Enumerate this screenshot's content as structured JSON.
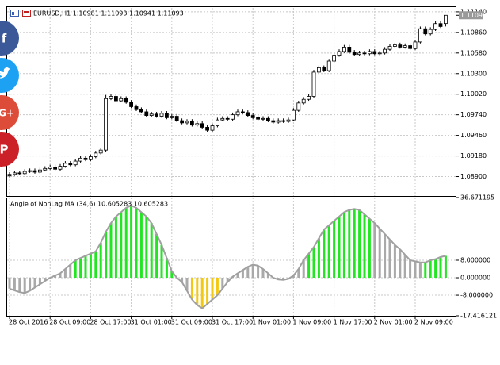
{
  "share_buttons": [
    "f",
    "G+",
    "P"
  ],
  "chart_data": [
    {
      "type": "candlestick",
      "title": "EURUSD,H1  1.10981 1.11093 1.10941 1.11093",
      "categories": [
        "28 Oct 2016",
        null,
        null,
        null,
        null,
        null,
        null,
        null,
        "28 Oct 09:00",
        null,
        null,
        null,
        null,
        null,
        null,
        null,
        "28 Oct 17:00",
        null,
        null,
        null,
        null,
        null,
        null,
        null,
        "31 Oct 01:00",
        null,
        null,
        null,
        null,
        null,
        null,
        null,
        "31 Oct 09:00",
        null,
        null,
        null,
        null,
        null,
        null,
        null,
        "31 Oct 17:00",
        null,
        null,
        null,
        null,
        null,
        null,
        null,
        "1 Nov 01:00",
        null,
        null,
        null,
        null,
        null,
        null,
        null,
        "1 Nov 09:00",
        null,
        null,
        null,
        null,
        null,
        null,
        null,
        "1 Nov 17:00",
        null,
        null,
        null,
        null,
        null,
        null,
        null,
        "2 Nov 01:00",
        null,
        null,
        null,
        null,
        null,
        null,
        null,
        "2 Nov 09:00",
        null,
        null,
        null,
        null,
        null,
        null
      ],
      "open": [
        1.0891,
        1.0893,
        1.0895,
        1.0894,
        1.0897,
        1.0898,
        1.0896,
        1.0899,
        1.0901,
        1.0903,
        1.09,
        1.0904,
        1.0908,
        1.0906,
        1.0911,
        1.0915,
        1.0913,
        1.0917,
        1.0922,
        1.0926,
        1.0996,
        1.0999,
        1.0993,
        1.0996,
        1.0991,
        1.0985,
        1.0981,
        1.0978,
        1.0973,
        1.0975,
        1.0972,
        1.0976,
        1.097,
        1.0972,
        1.0966,
        1.0963,
        1.0965,
        1.096,
        1.0962,
        1.0957,
        1.0953,
        1.0959,
        1.0967,
        1.0969,
        1.0968,
        1.0974,
        1.0978,
        1.0977,
        1.0973,
        1.097,
        1.0968,
        1.0969,
        1.0966,
        1.0964,
        1.0966,
        1.0965,
        1.0967,
        1.098,
        1.099,
        1.0995,
        1.0999,
        1.1032,
        1.1038,
        1.1034,
        1.1047,
        1.1055,
        1.106,
        1.1066,
        1.1059,
        1.1056,
        1.1058,
        1.1057,
        1.106,
        1.1057,
        1.1058,
        1.1063,
        1.1067,
        1.1069,
        1.1066,
        1.1068,
        1.1064,
        1.1073,
        1.1091,
        1.1084,
        1.109,
        1.1098,
        1.10981
      ],
      "high": [
        1.0896,
        1.0898,
        1.0898,
        1.09,
        1.0901,
        1.0901,
        1.0902,
        1.0904,
        1.0906,
        1.0906,
        1.0907,
        1.0911,
        1.0911,
        1.0914,
        1.0918,
        1.0918,
        1.092,
        1.0925,
        1.0929,
        1.1001,
        1.1002,
        1.1002,
        1.0999,
        1.0999,
        1.0994,
        1.0988,
        1.0984,
        1.0981,
        1.0978,
        1.0978,
        1.0979,
        1.0979,
        1.0975,
        1.0975,
        1.0969,
        1.0968,
        1.0968,
        1.0965,
        1.0965,
        1.096,
        1.0962,
        1.097,
        1.0972,
        1.0972,
        1.0977,
        1.0981,
        1.0981,
        1.098,
        1.0976,
        1.0973,
        1.0972,
        1.0972,
        1.0969,
        1.0969,
        1.0969,
        1.097,
        1.0983,
        1.0993,
        1.0998,
        1.1002,
        1.1035,
        1.1041,
        1.1041,
        1.105,
        1.1058,
        1.1063,
        1.1069,
        1.1069,
        1.1062,
        1.1061,
        1.1061,
        1.1063,
        1.1063,
        1.1061,
        1.1066,
        1.107,
        1.1072,
        1.1072,
        1.1071,
        1.1071,
        1.1076,
        1.1094,
        1.1094,
        1.1093,
        1.1101,
        1.1101,
        1.11093
      ],
      "low": [
        1.0889,
        1.0891,
        1.0892,
        1.0892,
        1.0895,
        1.0894,
        1.0894,
        1.0897,
        1.0899,
        1.0898,
        1.0898,
        1.0902,
        1.0904,
        1.0904,
        1.0909,
        1.0911,
        1.0911,
        1.0915,
        1.092,
        1.0924,
        1.0994,
        1.0991,
        1.0991,
        1.0989,
        1.0983,
        1.0979,
        1.0976,
        1.0971,
        1.0971,
        1.097,
        1.097,
        1.0968,
        1.0968,
        1.0964,
        1.0961,
        1.0961,
        1.0958,
        1.0958,
        1.0955,
        1.0951,
        1.0951,
        1.0957,
        1.0965,
        1.0966,
        1.0966,
        1.0972,
        1.0975,
        1.0971,
        1.0968,
        1.0966,
        1.0966,
        1.0964,
        1.0962,
        1.0962,
        1.0963,
        1.0963,
        1.0965,
        1.0978,
        1.0988,
        1.0993,
        1.0997,
        1.103,
        1.1032,
        1.1032,
        1.1045,
        1.1053,
        1.1058,
        1.1057,
        1.1054,
        1.1054,
        1.1055,
        1.1055,
        1.1055,
        1.1055,
        1.1056,
        1.1061,
        1.1065,
        1.1064,
        1.1064,
        1.1062,
        1.1062,
        1.1071,
        1.1082,
        1.1082,
        1.1088,
        1.1092,
        1.10941
      ],
      "close": [
        1.0893,
        1.0895,
        1.0894,
        1.0897,
        1.0898,
        1.0896,
        1.0899,
        1.0901,
        1.0903,
        1.09,
        1.0904,
        1.0908,
        1.0906,
        1.0911,
        1.0915,
        1.0913,
        1.0917,
        1.0922,
        1.0926,
        1.0996,
        1.0999,
        1.0993,
        1.0996,
        1.0991,
        1.0985,
        1.0981,
        1.0978,
        1.0973,
        1.0975,
        1.0972,
        1.0976,
        1.097,
        1.0972,
        1.0966,
        1.0963,
        1.0965,
        1.096,
        1.0962,
        1.0957,
        1.0953,
        1.0959,
        1.0967,
        1.0969,
        1.0968,
        1.0974,
        1.0978,
        1.0977,
        1.0973,
        1.097,
        1.0968,
        1.0969,
        1.0966,
        1.0964,
        1.0966,
        1.0965,
        1.0967,
        1.098,
        1.099,
        1.0995,
        1.0999,
        1.1032,
        1.1038,
        1.1034,
        1.1047,
        1.1055,
        1.106,
        1.1066,
        1.1059,
        1.1056,
        1.1058,
        1.1057,
        1.106,
        1.1057,
        1.1058,
        1.1063,
        1.1067,
        1.1069,
        1.1066,
        1.1068,
        1.1064,
        1.1073,
        1.1091,
        1.1084,
        1.109,
        1.1098,
        1.1094,
        1.11093
      ],
      "up_color": "#ffffff",
      "down_color": "#000000",
      "wick_color": "#000000",
      "last_price": {
        "value": 1.11093,
        "label": "1.11093"
      },
      "ylim": [
        1.08636,
        1.11193
      ],
      "yticks": [
        {
          "value": 1.089,
          "label": "1.08900"
        },
        {
          "value": 1.0918,
          "label": "1.09180"
        },
        {
          "value": 1.0946,
          "label": "1.09460"
        },
        {
          "value": 1.0974,
          "label": "1.09740"
        },
        {
          "value": 1.1002,
          "label": "1.10020"
        },
        {
          "value": 1.103,
          "label": "1.10300"
        },
        {
          "value": 1.1058,
          "label": "1.10580"
        },
        {
          "value": 1.1086,
          "label": "1.10860"
        },
        {
          "value": 1.1114,
          "label": "1.11140"
        }
      ],
      "grid": true
    },
    {
      "type": "bar",
      "title": "Angle of NonLag MA (34,6) 10.605283 10.605283",
      "values": [
        -5,
        -5.8,
        -6.6,
        -7,
        -6,
        -4.5,
        -3,
        -1.5,
        0,
        1,
        2,
        4,
        6,
        8,
        9,
        10,
        11,
        12,
        16,
        21,
        25,
        28,
        30,
        32,
        33,
        32,
        30,
        28,
        25,
        20,
        15,
        9,
        3,
        0,
        -2,
        -6,
        -10,
        -12.5,
        -14,
        -12,
        -10,
        -8,
        -5,
        -2,
        0.5,
        2,
        3.5,
        5,
        6,
        5.5,
        4,
        2,
        0,
        -0.8,
        -1,
        -0.5,
        1,
        4,
        8,
        11,
        14,
        18,
        22,
        24,
        26,
        28,
        30,
        31,
        31.5,
        31,
        29,
        27,
        25,
        22.5,
        20,
        17.5,
        15,
        13,
        10.5,
        8,
        7.5,
        7,
        7,
        8,
        8.5,
        9.5,
        10
      ],
      "bar_colors": [
        "#a9a9a9",
        "#a9a9a9",
        "#a9a9a9",
        "#a9a9a9",
        "#a9a9a9",
        "#a9a9a9",
        "#a9a9a9",
        "#a9a9a9",
        "#a9a9a9",
        "#a9a9a9",
        "#a9a9a9",
        "#a9a9a9",
        "#a9a9a9",
        "#22e622",
        "#22e622",
        "#22e622",
        "#22e622",
        "#22e622",
        "#22e622",
        "#22e622",
        "#22e622",
        "#22e622",
        "#22e622",
        "#22e622",
        "#22e622",
        "#22e622",
        "#22e622",
        "#22e622",
        "#22e622",
        "#22e622",
        "#22e622",
        "#22e622",
        "#22e622",
        "#a9a9a9",
        "#a9a9a9",
        "#a9a9a9",
        "#f2c811",
        "#f2c811",
        "#f2c811",
        "#f2c811",
        "#f2c811",
        "#f2c811",
        "#a9a9a9",
        "#a9a9a9",
        "#a9a9a9",
        "#a9a9a9",
        "#a9a9a9",
        "#a9a9a9",
        "#a9a9a9",
        "#a9a9a9",
        "#a9a9a9",
        "#a9a9a9",
        "#a9a9a9",
        "#a9a9a9",
        "#a9a9a9",
        "#a9a9a9",
        "#a9a9a9",
        "#a9a9a9",
        "#a9a9a9",
        "#22e622",
        "#22e622",
        "#22e622",
        "#22e622",
        "#22e622",
        "#22e622",
        "#22e622",
        "#22e622",
        "#22e622",
        "#22e622",
        "#22e622",
        "#22e622",
        "#22e622",
        "#a9a9a9",
        "#a9a9a9",
        "#a9a9a9",
        "#a9a9a9",
        "#a9a9a9",
        "#a9a9a9",
        "#a9a9a9",
        "#a9a9a9",
        "#a9a9a9",
        "#a9a9a9",
        "#22e622",
        "#22e622",
        "#22e622",
        "#22e622",
        "#22e622"
      ],
      "line_color": "#a0a0a0",
      "ylim": [
        -17.416121,
        36.671195
      ],
      "yticks": [
        {
          "value": -17.416121,
          "label": "-17.416121"
        },
        {
          "value": -8,
          "label": "-8.000000"
        },
        {
          "value": 0,
          "label": "0.000000"
        },
        {
          "value": 8,
          "label": "8.000000"
        },
        {
          "value": 36.671195,
          "label": "36.671195"
        }
      ],
      "grid": true
    }
  ]
}
